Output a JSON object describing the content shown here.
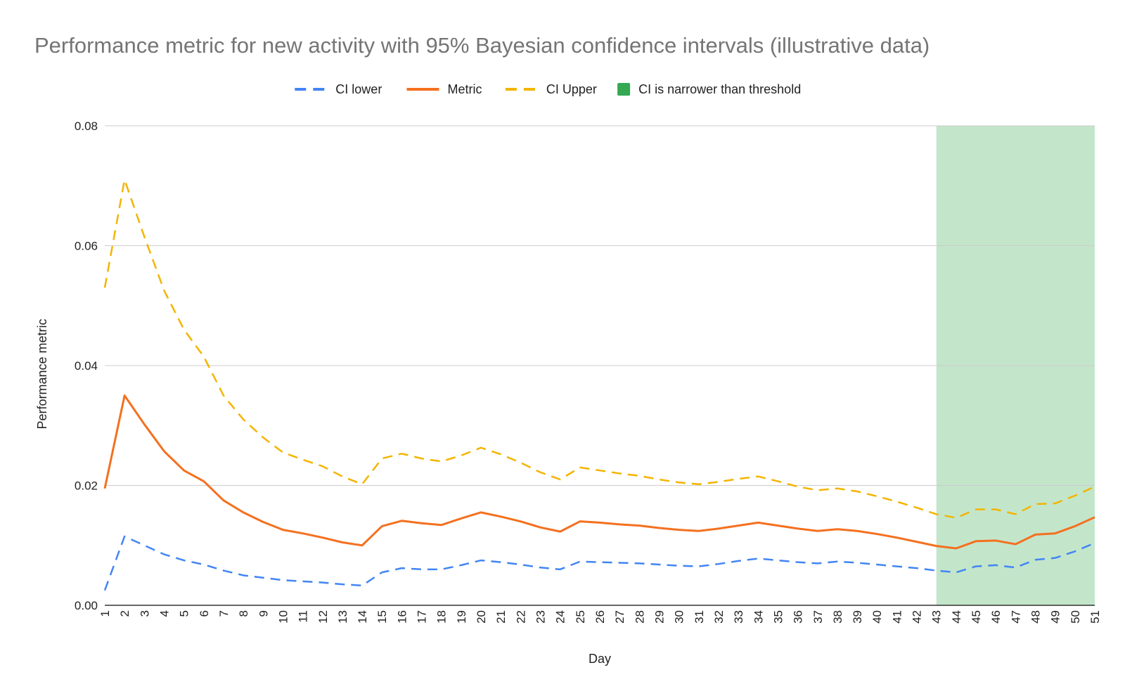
{
  "chart_data": {
    "type": "line",
    "title": "Performance metric for new activity with 95% Bayesian confidence intervals (illustrative data)",
    "xlabel": "Day",
    "ylabel": "Performance metric",
    "ylim": [
      0,
      0.08
    ],
    "yticks": [
      "0.00",
      "0.02",
      "0.04",
      "0.06",
      "0.08"
    ],
    "grid": true,
    "legend_position": "top",
    "x": [
      1,
      2,
      3,
      4,
      5,
      6,
      7,
      8,
      9,
      10,
      11,
      12,
      13,
      14,
      15,
      16,
      17,
      18,
      19,
      20,
      21,
      22,
      23,
      24,
      25,
      26,
      27,
      28,
      29,
      30,
      31,
      32,
      33,
      34,
      35,
      36,
      37,
      38,
      39,
      40,
      41,
      42,
      43,
      44,
      45,
      46,
      47,
      48,
      49,
      50,
      51
    ],
    "series": [
      {
        "name": "CI lower",
        "color": "#4285f4",
        "style": "dashed",
        "values": [
          0.0025,
          0.0115,
          0.01,
          0.0085,
          0.0075,
          0.0068,
          0.0058,
          0.005,
          0.0046,
          0.0042,
          0.004,
          0.0038,
          0.0035,
          0.0033,
          0.0055,
          0.0062,
          0.006,
          0.006,
          0.0067,
          0.0075,
          0.0072,
          0.0068,
          0.0063,
          0.006,
          0.0073,
          0.0072,
          0.0071,
          0.007,
          0.0068,
          0.0066,
          0.0065,
          0.0069,
          0.0074,
          0.0078,
          0.0075,
          0.0072,
          0.007,
          0.0073,
          0.0071,
          0.0068,
          0.0065,
          0.0062,
          0.0058,
          0.0055,
          0.0065,
          0.0067,
          0.0063,
          0.0076,
          0.0079,
          0.009,
          0.0104
        ]
      },
      {
        "name": "Metric",
        "color": "#f4701f",
        "style": "solid",
        "values": [
          0.0195,
          0.035,
          0.0302,
          0.0257,
          0.0225,
          0.0207,
          0.0175,
          0.0155,
          0.0139,
          0.0126,
          0.012,
          0.0113,
          0.0105,
          0.01,
          0.0132,
          0.0141,
          0.0137,
          0.0134,
          0.0145,
          0.0155,
          0.0148,
          0.014,
          0.013,
          0.0123,
          0.014,
          0.0138,
          0.0135,
          0.0133,
          0.0129,
          0.0126,
          0.0124,
          0.0128,
          0.0133,
          0.0138,
          0.0133,
          0.0128,
          0.0124,
          0.0127,
          0.0124,
          0.0119,
          0.0113,
          0.0106,
          0.0099,
          0.0095,
          0.0107,
          0.0108,
          0.0102,
          0.0118,
          0.012,
          0.0132,
          0.0147
        ]
      },
      {
        "name": "CI Upper",
        "color": "#f4b400",
        "style": "dashed",
        "values": [
          0.053,
          0.071,
          0.0615,
          0.0525,
          0.046,
          0.0415,
          0.035,
          0.031,
          0.028,
          0.0255,
          0.0243,
          0.0232,
          0.0215,
          0.0202,
          0.0245,
          0.0253,
          0.0245,
          0.024,
          0.025,
          0.0263,
          0.0252,
          0.0238,
          0.0222,
          0.021,
          0.023,
          0.0225,
          0.022,
          0.0216,
          0.021,
          0.0205,
          0.0202,
          0.0206,
          0.0211,
          0.0215,
          0.0207,
          0.0198,
          0.0192,
          0.0195,
          0.019,
          0.0182,
          0.0173,
          0.0163,
          0.0152,
          0.0146,
          0.016,
          0.016,
          0.0152,
          0.0169,
          0.017,
          0.0183,
          0.0198
        ]
      }
    ],
    "highlight": {
      "name": "CI is narrower than threshold",
      "color": "#c3e6cb",
      "legend_color": "#34a853",
      "x_start": 43,
      "x_end": 51
    }
  }
}
